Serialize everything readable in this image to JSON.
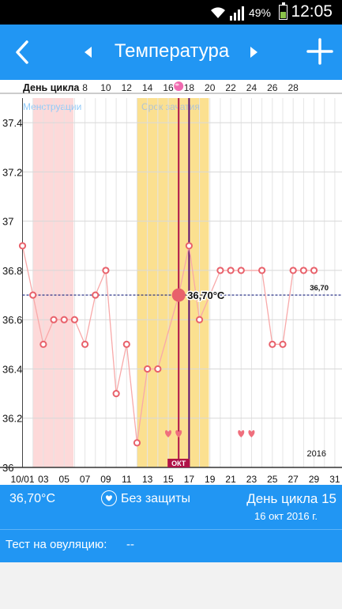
{
  "status_bar": {
    "battery_percent": "49%",
    "time": "12:05"
  },
  "app_bar": {
    "title": "Температура"
  },
  "chart_data": {
    "type": "line",
    "header_label": "День цикла",
    "cycle_day_ticks": [
      "8",
      "10",
      "12",
      "14",
      "16",
      "18",
      "20",
      "22",
      "24",
      "26",
      "28"
    ],
    "x_tick_labels": [
      "10/01",
      "03",
      "05",
      "07",
      "09",
      "11",
      "13",
      "15",
      "17",
      "19",
      "21",
      "23",
      "25",
      "27",
      "29",
      "31"
    ],
    "y_tick_labels": [
      "37.4",
      "37.2",
      "37",
      "36.8",
      "36.6",
      "36.4",
      "36.2",
      "36"
    ],
    "ylim": [
      36.0,
      37.5
    ],
    "year_label": "2016",
    "month_marker": "ОКТ",
    "bands": [
      {
        "label": "Менструации",
        "from_day": 2,
        "to_day": 5.9,
        "color": "#fdd9d9"
      },
      {
        "label": "Срок зачатия",
        "from_day": 12,
        "to_day": 18.9,
        "color": "#fbe090"
      }
    ],
    "reference_line": {
      "value": 36.7,
      "label": "36,70"
    },
    "selected_point": {
      "day": 16,
      "value": 36.7,
      "label": "36,70°C"
    },
    "line_color": "#f8a9a9",
    "marker_color": "#e8616b",
    "points": [
      {
        "day": 1,
        "value": 36.9
      },
      {
        "day": 2,
        "value": 36.7
      },
      {
        "day": 3,
        "value": 36.5
      },
      {
        "day": 4,
        "value": 36.6
      },
      {
        "day": 5,
        "value": 36.6
      },
      {
        "day": 6,
        "value": 36.6
      },
      {
        "day": 7,
        "value": 36.5
      },
      {
        "day": 8,
        "value": 36.7
      },
      {
        "day": 9,
        "value": 36.8
      },
      {
        "day": 10,
        "value": 36.3
      },
      {
        "day": 11,
        "value": 36.5
      },
      {
        "day": 12,
        "value": 36.1
      },
      {
        "day": 13,
        "value": 36.4
      },
      {
        "day": 14,
        "value": 36.4
      },
      {
        "day": 16,
        "value": 36.7
      },
      {
        "day": 17,
        "value": 36.9
      },
      {
        "day": 18,
        "value": 36.6
      },
      {
        "day": 20,
        "value": 36.8
      },
      {
        "day": 21,
        "value": 36.8
      },
      {
        "day": 22,
        "value": 36.8
      },
      {
        "day": 24,
        "value": 36.8
      },
      {
        "day": 25,
        "value": 36.5
      },
      {
        "day": 26,
        "value": 36.5
      },
      {
        "day": 27,
        "value": 36.8
      },
      {
        "day": 28,
        "value": 36.8
      },
      {
        "day": 29,
        "value": 36.8
      }
    ],
    "heart_days": [
      15,
      16,
      22,
      23
    ],
    "ovulation_day": 16
  },
  "info_bar": {
    "temperature": "36,70°C",
    "protection": "Без защиты",
    "cycle_day": "День цикла 15",
    "date": "16 окт 2016 г."
  },
  "ovulation_test": {
    "label": "Тест на овуляцию:",
    "value": "--"
  }
}
